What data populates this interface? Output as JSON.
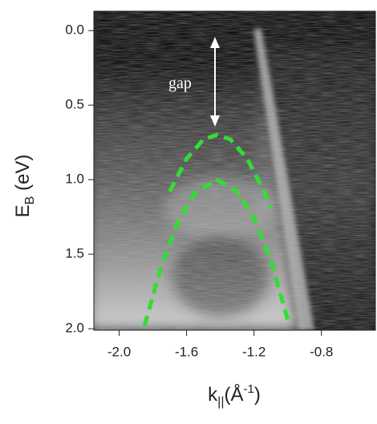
{
  "chart_data": {
    "type": "line",
    "annotation": "gap",
    "ylabel": {
      "main": "E",
      "sub": "B",
      "rest": " (eV)"
    },
    "xlabel": {
      "main": "k",
      "sub": "||",
      "open": "(Å",
      "sup": "-1",
      "close": ")"
    },
    "xlim": [
      -2.15,
      -0.48
    ],
    "ylim": [
      2.01,
      -0.13
    ],
    "xticks": [
      {
        "value": -2.0,
        "label": "-2.0"
      },
      -1.6,
      -1.2,
      -0.8
    ],
    "yticks": [
      {
        "value": 0,
        "label": "0.0"
      },
      0.5,
      {
        "value": 1,
        "label": "1.0"
      },
      1.5,
      {
        "value": 2,
        "label": "2.0"
      }
    ],
    "series": [
      {
        "color": "#33dd33",
        "x": [
          -1.7,
          -1.6,
          -1.5,
          -1.42,
          -1.34,
          -1.24,
          -1.14,
          -1.1
        ],
        "values": [
          1.08,
          0.86,
          0.73,
          0.7,
          0.73,
          0.86,
          1.08,
          1.19
        ]
      },
      {
        "color": "#33dd33",
        "x": [
          -1.85,
          -1.75,
          -1.65,
          -1.55,
          -1.42,
          -1.3,
          -1.2,
          -1.1,
          -0.99
        ],
        "values": [
          1.98,
          1.58,
          1.28,
          1.09,
          1.0,
          1.08,
          1.26,
          1.54,
          1.98
        ]
      }
    ]
  }
}
